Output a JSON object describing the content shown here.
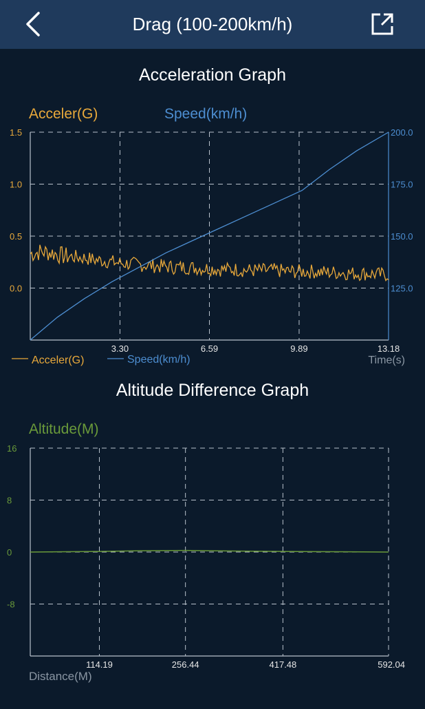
{
  "nav": {
    "title": "Drag (100-200km/h)",
    "back_icon": "chevron-left-icon",
    "share_icon": "share-export-icon"
  },
  "colors": {
    "background": "#0b1a2b",
    "navbar": "#1f3a5c",
    "acceleration": "#e9a93b",
    "speed": "#4d8ed1",
    "altitude": "#6a9a3a",
    "grid": "#b9c2cc",
    "tick_text": "#e6e6e6",
    "muted_text": "#8a96a3"
  },
  "accel_graph": {
    "title": "Acceleration Graph",
    "left_axis_name": "Acceler(G)",
    "right_axis_name": "Speed(km/h)",
    "legend_accel": "Acceler(G)",
    "legend_speed": "Speed(km/h)",
    "x_axis_name": "Time(s)"
  },
  "alt_graph": {
    "title": "Altitude Difference Graph",
    "y_axis_name": "Altitude(M)",
    "x_axis_name": "Distance(M)"
  },
  "chart_data": [
    {
      "type": "line",
      "title": "Acceleration Graph",
      "xlabel": "Time(s)",
      "xlim": [
        0,
        13.18
      ],
      "x_ticks": [
        "3.30",
        "6.59",
        "9.89",
        "13.18"
      ],
      "y_left": {
        "label": "Acceler(G)",
        "range": [
          -0.5,
          1.5
        ],
        "ticks": [
          "0.0",
          "0.5",
          "1.0",
          "1.5"
        ]
      },
      "y_right": {
        "label": "Speed(km/h)",
        "range": [
          100,
          200
        ],
        "ticks": [
          "125.0",
          "150.0",
          "175.0",
          "200.0"
        ]
      },
      "grid": true,
      "legend": "bottom-left",
      "series": [
        {
          "name": "Acceler(G)",
          "axis": "left",
          "x": [
            0,
            0.4,
            0.8,
            1.2,
            1.6,
            2.0,
            2.4,
            2.8,
            3.3,
            3.8,
            4.3,
            4.8,
            5.3,
            5.8,
            6.3,
            6.6,
            7.0,
            7.5,
            8.0,
            8.5,
            9.0,
            9.5,
            9.9,
            10.4,
            10.9,
            11.4,
            11.9,
            12.4,
            12.9,
            13.18
          ],
          "values": [
            0.33,
            0.35,
            0.34,
            0.31,
            0.3,
            0.29,
            0.27,
            0.26,
            0.24,
            0.23,
            0.22,
            0.21,
            0.2,
            0.2,
            0.19,
            0.19,
            0.18,
            0.18,
            0.17,
            0.17,
            0.17,
            0.16,
            0.16,
            0.16,
            0.15,
            0.15,
            0.14,
            0.14,
            0.13,
            0.13
          ]
        },
        {
          "name": "Speed(km/h)",
          "axis": "right",
          "x": [
            0,
            1,
            2,
            3,
            4,
            5,
            6,
            7,
            8,
            9,
            10,
            11,
            12,
            13.18
          ],
          "values": [
            100,
            111,
            120,
            128,
            135,
            142,
            148,
            154,
            160,
            166,
            172,
            182,
            191,
            200
          ]
        }
      ]
    },
    {
      "type": "line",
      "title": "Altitude Difference Graph",
      "xlabel": "Distance(M)",
      "ylabel": "Altitude(M)",
      "xlim": [
        0,
        592.04
      ],
      "x_ticks": [
        "114.19",
        "256.44",
        "417.48",
        "592.04"
      ],
      "ylim": [
        -16,
        16
      ],
      "y_ticks": [
        "-8",
        "0",
        "8",
        "16"
      ],
      "grid": true,
      "series": [
        {
          "name": "Altitude(M)",
          "x": [
            0,
            60,
            114.19,
            180,
            256.44,
            300,
            350,
            417.48,
            500,
            592.04
          ],
          "values": [
            0,
            0.05,
            0.1,
            0.2,
            0.25,
            0.2,
            0.15,
            0.1,
            0.05,
            0
          ]
        }
      ]
    }
  ]
}
